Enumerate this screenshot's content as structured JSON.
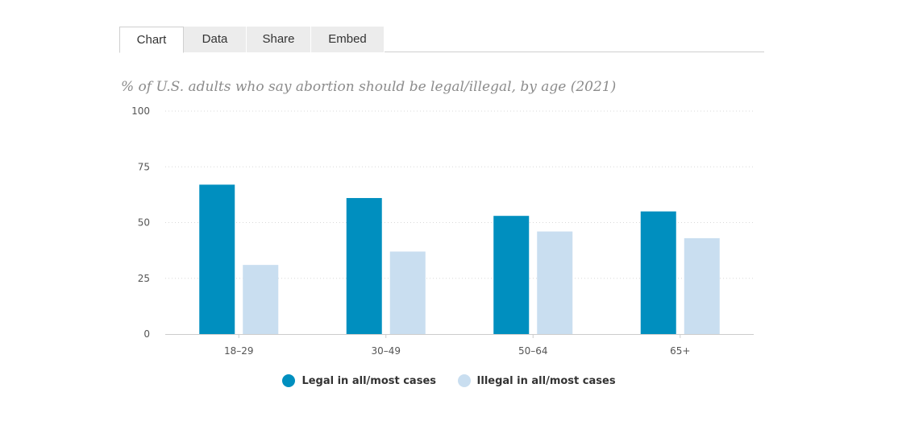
{
  "tabs": [
    "Chart",
    "Data",
    "Share",
    "Embed"
  ],
  "colors": {
    "legal": "#008fbf",
    "illegal": "#c9def0",
    "axis": "#cccccc",
    "grid": "#d8d8d8",
    "tick_text": "#555555"
  },
  "chart_data": {
    "type": "bar",
    "title": "% of U.S. adults who say abortion should be legal/illegal, by age (2021)",
    "categories": [
      "18–29",
      "30–49",
      "50–64",
      "65+"
    ],
    "series": [
      {
        "name": "Legal in all/most cases",
        "values": [
          67,
          61,
          53,
          55
        ]
      },
      {
        "name": "Illegal in all/most cases",
        "values": [
          31,
          37,
          46,
          43
        ]
      }
    ],
    "ylim": [
      0,
      100
    ],
    "yticks": [
      0,
      25,
      50,
      75,
      100
    ],
    "grid": true,
    "legend_position": "bottom-center"
  }
}
